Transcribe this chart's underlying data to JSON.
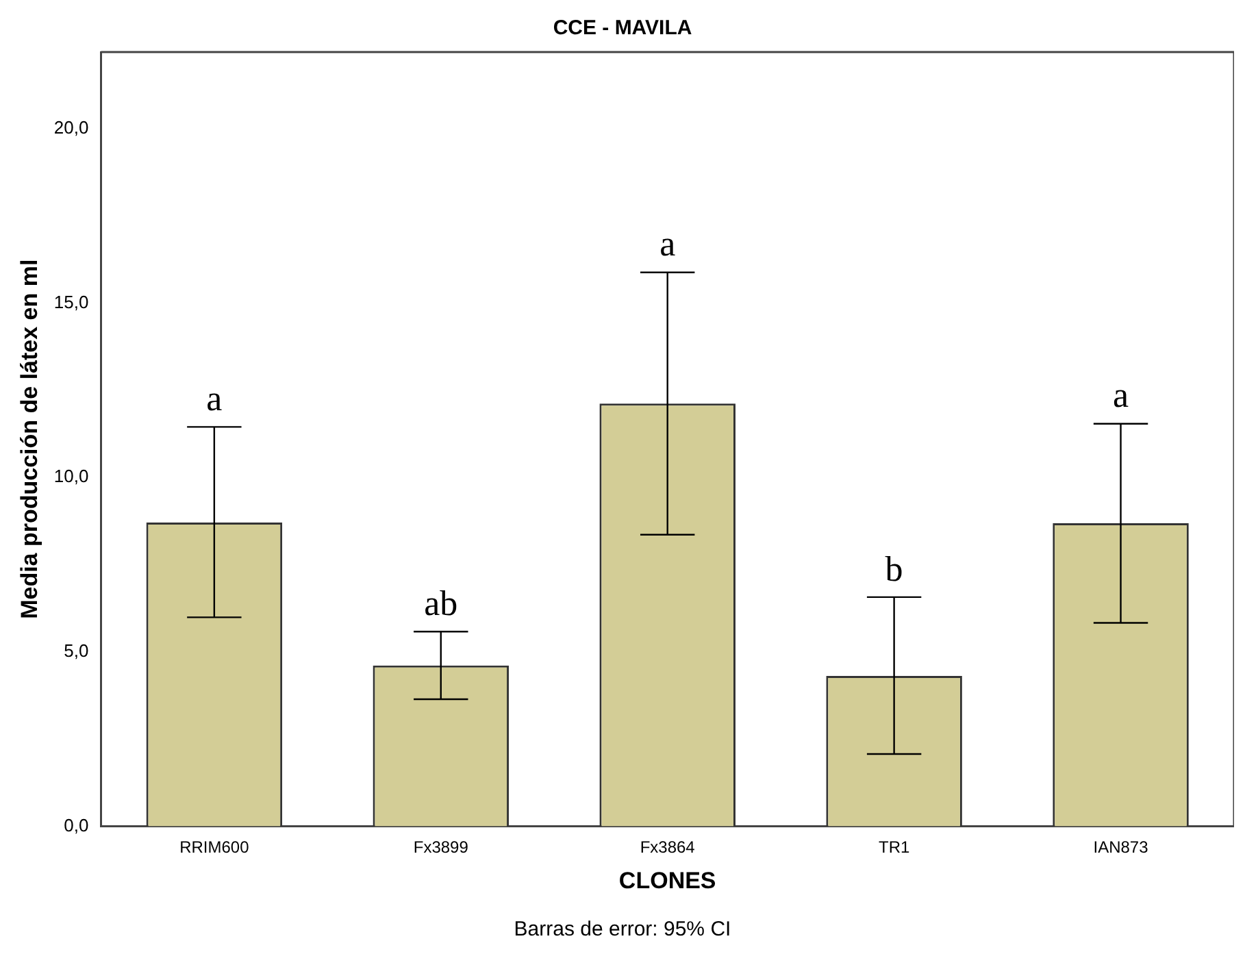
{
  "chart_data": {
    "type": "bar",
    "title": "CCE - MAVILA",
    "xlabel": "CLONES",
    "ylabel": "Media producción de látex en ml",
    "categories": [
      "RRIM600",
      "Fx3899",
      "Fx3864",
      "TR1",
      "IAN873"
    ],
    "values": [
      8.71,
      4.61,
      12.12,
      4.31,
      8.69
    ],
    "color": "#d3cd96",
    "errors": [
      [
        5.99,
        11.45
      ],
      [
        3.64,
        5.58
      ],
      [
        8.36,
        15.88
      ],
      [
        2.07,
        6.57
      ],
      [
        5.83,
        11.54
      ]
    ],
    "ylim": [
      0,
      22.2
    ],
    "yticks": [
      {
        "value": 0,
        "label": "0,0"
      },
      {
        "value": 5,
        "label": "5,0"
      },
      {
        "value": 10,
        "label": "10,0"
      },
      {
        "value": 15,
        "label": "15,0"
      },
      {
        "value": 20,
        "label": "20,0"
      }
    ],
    "grid": false,
    "legend": false,
    "annotations": [
      {
        "text": "a",
        "x": "RRIM600",
        "y": 11.45
      },
      {
        "text": "ab",
        "x": "Fx3899",
        "y": 5.58
      },
      {
        "text": "a",
        "x": "Fx3864",
        "y": 15.88
      },
      {
        "text": "b",
        "x": "TR1",
        "y": 6.57
      },
      {
        "text": "a",
        "x": "IAN873",
        "y": 11.54
      },
      "Barras de error: 95% CI"
    ]
  }
}
